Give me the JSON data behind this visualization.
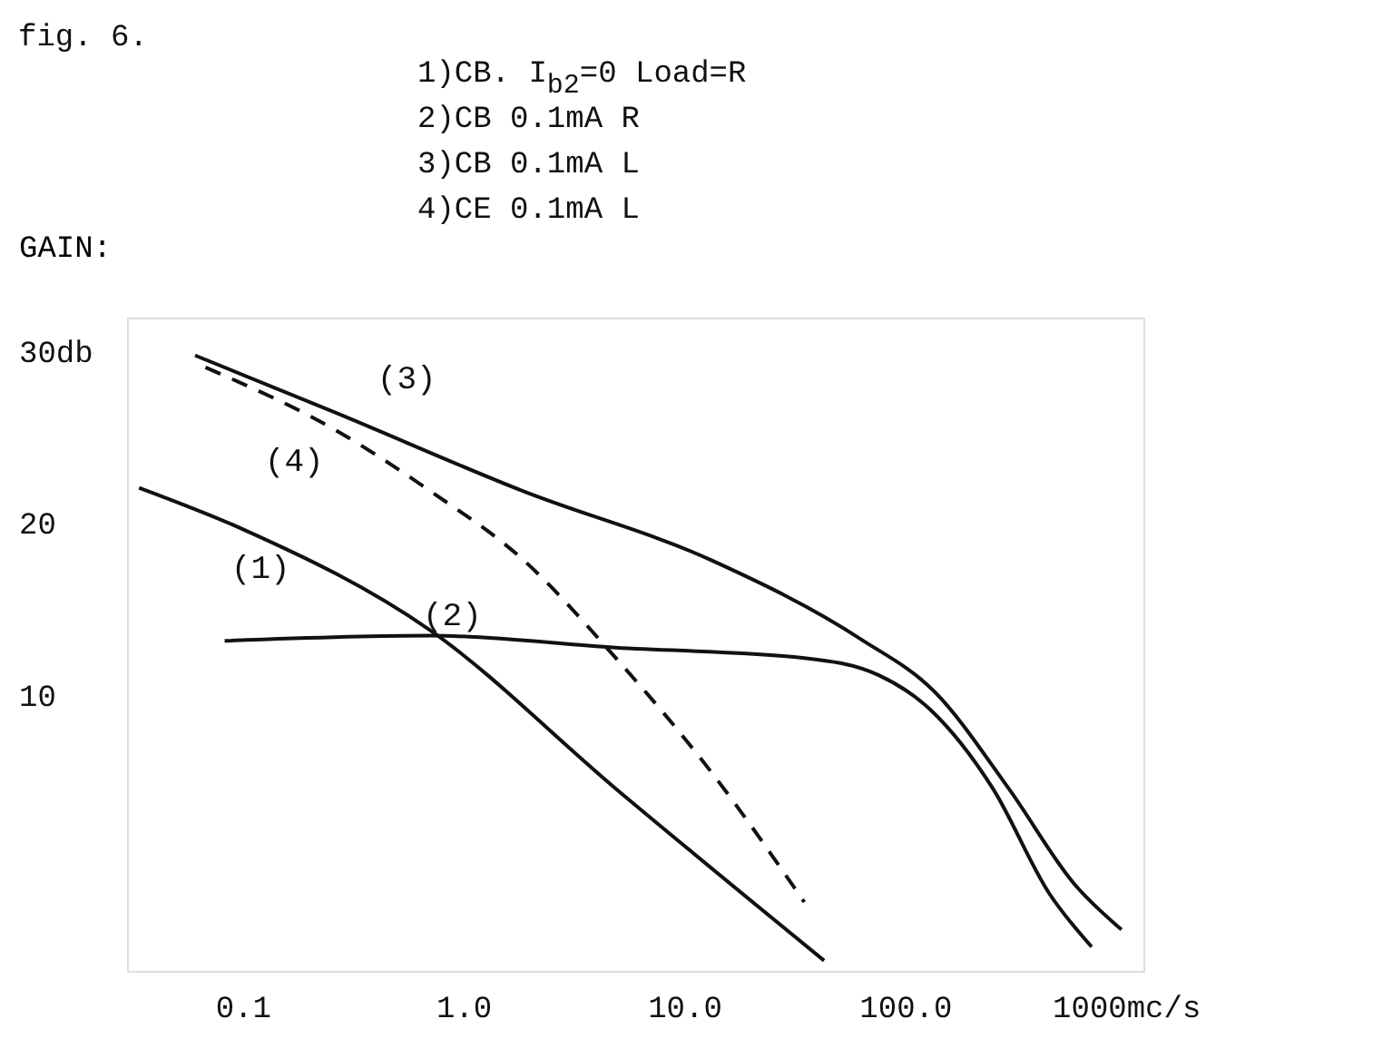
{
  "chart_data": {
    "type": "line",
    "title": "fig. 6.",
    "ylabel": "GAIN:",
    "log": "x",
    "xlim": [
      0.03,
      1200
    ],
    "ylim": [
      -6,
      32
    ],
    "xticks": [
      {
        "value": 0.1,
        "label": "0.1"
      },
      {
        "value": 1,
        "label": "1.0"
      },
      {
        "value": 10,
        "label": "10.0"
      },
      {
        "value": 100,
        "label": "100.0"
      },
      {
        "value": 1000,
        "label": "1000mc/s"
      }
    ],
    "yticks": [
      {
        "value": 10,
        "label": "10"
      },
      {
        "value": 20,
        "label": "20"
      },
      {
        "value": 30,
        "label": "30db"
      }
    ],
    "grid": false,
    "marker": "none",
    "annotations": [
      "1)CB. I$_{b2}$=0 Load=R",
      "2)CB 0.1mA R",
      "3)CB 0.1mA L",
      "4)CE 0.1mA L"
    ],
    "series": [
      {
        "name": "(1)",
        "color": "#111111",
        "line_style": "solid",
        "x": [
          0.034,
          0.1,
          0.71,
          4.9,
          43
        ],
        "values": [
          22.1,
          19.7,
          13.8,
          4.6,
          -5.4
        ]
      },
      {
        "name": "(2)",
        "color": "#111111",
        "line_style": "solid",
        "x": [
          0.083,
          0.71,
          4.9,
          35,
          76,
          130,
          250,
          450,
          700
        ],
        "values": [
          13.2,
          13.5,
          12.8,
          12.2,
          11.2,
          9.2,
          4.6,
          -1.5,
          -4.6
        ]
      },
      {
        "name": "(3)",
        "color": "#111111",
        "line_style": "solid",
        "x": [
          0.061,
          0.26,
          1.87,
          13.2,
          63,
          137,
          295,
          589,
          955
        ],
        "values": [
          29.8,
          26.5,
          21.9,
          17.9,
          13.3,
          10.2,
          4.6,
          -1.0,
          -3.6
        ]
      },
      {
        "name": "(4)",
        "color": "#111111",
        "line_style": "dashed",
        "x": [
          0.068,
          0.26,
          0.71,
          1.87,
          4.9,
          13.2,
          35
        ],
        "values": [
          29.1,
          25.5,
          21.9,
          17.9,
          12.2,
          5.6,
          -2.0
        ]
      }
    ]
  }
}
